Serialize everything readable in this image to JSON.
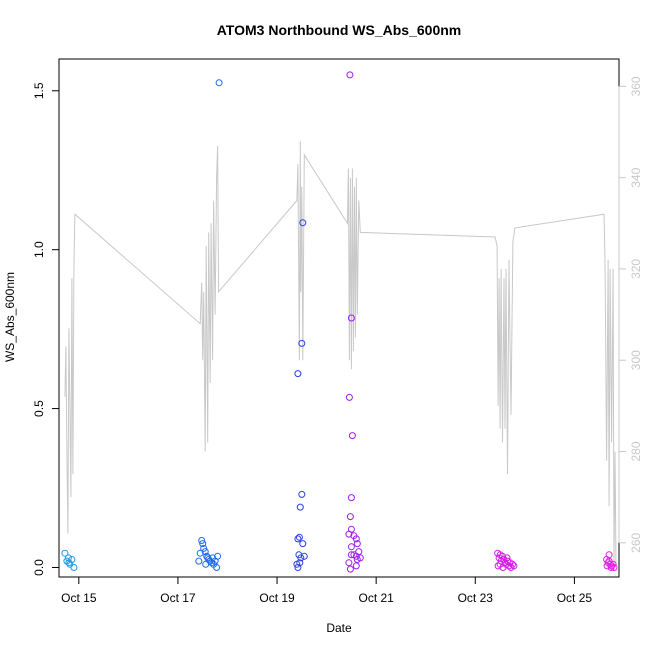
{
  "chart_data": {
    "type": "scatter",
    "title": "ATOM3 Northbound WS_Abs_600nm",
    "xlabel": "Date",
    "ylabel": "WS_Abs_600nm",
    "x_ticks": [
      "Oct 15",
      "Oct 17",
      "Oct 19",
      "Oct 21",
      "Oct 23",
      "Oct 25"
    ],
    "y_ticks": [
      "0.0",
      "0.5",
      "1.0",
      "1.5"
    ],
    "y_right_ticks": [
      "260",
      "280",
      "300",
      "320",
      "340",
      "360"
    ],
    "xlim": [
      14.6,
      25.9
    ],
    "ylim": [
      -0.03,
      1.6
    ],
    "y_right_lim": [
      252.5,
      366
    ],
    "grid": false,
    "colors": {
      "line": "#c8c8c8",
      "right_axis": "#c8c8c8",
      "axis": "#000000",
      "points_early": "#1e9be6",
      "points_mid": "#2457e8",
      "points_late": "#a31bf0",
      "points_end": "#e21de6"
    },
    "series": [
      {
        "kind": "scatter",
        "axis": "left",
        "points": [
          {
            "x": 14.72,
            "y": 0.045,
            "color": "#1e9be6"
          },
          {
            "x": 14.76,
            "y": 0.02,
            "color": "#1e9be6"
          },
          {
            "x": 14.79,
            "y": 0.03,
            "color": "#1e9be6"
          },
          {
            "x": 14.82,
            "y": 0.01,
            "color": "#1e9be6"
          },
          {
            "x": 14.86,
            "y": 0.025,
            "color": "#1e9be6"
          },
          {
            "x": 14.9,
            "y": 0.0,
            "color": "#1e9be6"
          },
          {
            "x": 14.8,
            "y": 0.015,
            "color": "#1e9be6"
          },
          {
            "x": 17.48,
            "y": 0.085,
            "color": "#1e6be6"
          },
          {
            "x": 17.5,
            "y": 0.075,
            "color": "#1e6be6"
          },
          {
            "x": 17.52,
            "y": 0.06,
            "color": "#1e6be6"
          },
          {
            "x": 17.45,
            "y": 0.045,
            "color": "#1e6be6"
          },
          {
            "x": 17.55,
            "y": 0.05,
            "color": "#1e6be6"
          },
          {
            "x": 17.58,
            "y": 0.035,
            "color": "#1e6be6"
          },
          {
            "x": 17.6,
            "y": 0.03,
            "color": "#1e6be6"
          },
          {
            "x": 17.62,
            "y": 0.025,
            "color": "#1e6be6"
          },
          {
            "x": 17.65,
            "y": 0.02,
            "color": "#1e6be6"
          },
          {
            "x": 17.68,
            "y": 0.015,
            "color": "#1e6be6"
          },
          {
            "x": 17.7,
            "y": 0.03,
            "color": "#1e6be6"
          },
          {
            "x": 17.72,
            "y": 0.01,
            "color": "#1e6be6"
          },
          {
            "x": 17.75,
            "y": 0.02,
            "color": "#1e6be6"
          },
          {
            "x": 17.78,
            "y": 0.0,
            "color": "#1e6be6"
          },
          {
            "x": 17.8,
            "y": 0.035,
            "color": "#1e6be6"
          },
          {
            "x": 17.42,
            "y": 0.02,
            "color": "#1e6be6"
          },
          {
            "x": 17.56,
            "y": 0.01,
            "color": "#1e6be6"
          },
          {
            "x": 17.83,
            "y": 1.525,
            "color": "#1e6be6"
          },
          {
            "x": 19.42,
            "y": 0.61,
            "color": "#2a3ee8"
          },
          {
            "x": 19.5,
            "y": 0.705,
            "color": "#2a3ee8"
          },
          {
            "x": 19.52,
            "y": 1.085,
            "color": "#2a3ee8"
          },
          {
            "x": 19.5,
            "y": 0.23,
            "color": "#2a3ee8"
          },
          {
            "x": 19.47,
            "y": 0.19,
            "color": "#2a3ee8"
          },
          {
            "x": 19.45,
            "y": 0.095,
            "color": "#2a3ee8"
          },
          {
            "x": 19.42,
            "y": 0.09,
            "color": "#2a3ee8"
          },
          {
            "x": 19.52,
            "y": 0.075,
            "color": "#2a3ee8"
          },
          {
            "x": 19.44,
            "y": 0.04,
            "color": "#2a3ee8"
          },
          {
            "x": 19.48,
            "y": 0.03,
            "color": "#2a3ee8"
          },
          {
            "x": 19.55,
            "y": 0.035,
            "color": "#2a3ee8"
          },
          {
            "x": 19.46,
            "y": 0.015,
            "color": "#2a3ee8"
          },
          {
            "x": 19.42,
            "y": 0.0,
            "color": "#2a3ee8"
          },
          {
            "x": 19.4,
            "y": 0.01,
            "color": "#2a3ee8"
          },
          {
            "x": 20.47,
            "y": 1.55,
            "color": "#a31bf0"
          },
          {
            "x": 20.5,
            "y": 0.785,
            "color": "#a31bf0"
          },
          {
            "x": 20.46,
            "y": 0.535,
            "color": "#a31bf0"
          },
          {
            "x": 20.52,
            "y": 0.415,
            "color": "#a31bf0"
          },
          {
            "x": 20.5,
            "y": 0.22,
            "color": "#a31bf0"
          },
          {
            "x": 20.48,
            "y": 0.16,
            "color": "#a31bf0"
          },
          {
            "x": 20.5,
            "y": 0.12,
            "color": "#a31bf0"
          },
          {
            "x": 20.45,
            "y": 0.105,
            "color": "#a31bf0"
          },
          {
            "x": 20.55,
            "y": 0.1,
            "color": "#a31bf0"
          },
          {
            "x": 20.6,
            "y": 0.09,
            "color": "#a31bf0"
          },
          {
            "x": 20.62,
            "y": 0.075,
            "color": "#a31bf0"
          },
          {
            "x": 20.5,
            "y": 0.065,
            "color": "#a31bf0"
          },
          {
            "x": 20.55,
            "y": 0.04,
            "color": "#a31bf0"
          },
          {
            "x": 20.6,
            "y": 0.035,
            "color": "#a31bf0"
          },
          {
            "x": 20.65,
            "y": 0.05,
            "color": "#a31bf0"
          },
          {
            "x": 20.68,
            "y": 0.03,
            "color": "#a31bf0"
          },
          {
            "x": 20.62,
            "y": 0.025,
            "color": "#a31bf0"
          },
          {
            "x": 20.5,
            "y": 0.04,
            "color": "#a31bf0"
          },
          {
            "x": 20.45,
            "y": 0.015,
            "color": "#a31bf0"
          },
          {
            "x": 20.48,
            "y": -0.005,
            "color": "#a31bf0"
          },
          {
            "x": 20.6,
            "y": 0.005,
            "color": "#a31bf0"
          },
          {
            "x": 23.45,
            "y": 0.045,
            "color": "#d21de6"
          },
          {
            "x": 23.5,
            "y": 0.04,
            "color": "#d21de6"
          },
          {
            "x": 23.48,
            "y": 0.03,
            "color": "#d21de6"
          },
          {
            "x": 23.52,
            "y": 0.02,
            "color": "#d21de6"
          },
          {
            "x": 23.55,
            "y": 0.035,
            "color": "#d21de6"
          },
          {
            "x": 23.58,
            "y": 0.025,
            "color": "#d21de6"
          },
          {
            "x": 23.6,
            "y": 0.015,
            "color": "#d21de6"
          },
          {
            "x": 23.62,
            "y": 0.01,
            "color": "#d21de6"
          },
          {
            "x": 23.65,
            "y": 0.02,
            "color": "#d21de6"
          },
          {
            "x": 23.68,
            "y": 0.005,
            "color": "#d21de6"
          },
          {
            "x": 23.7,
            "y": 0.015,
            "color": "#d21de6"
          },
          {
            "x": 23.72,
            "y": 0.0,
            "color": "#d21de6"
          },
          {
            "x": 23.75,
            "y": 0.01,
            "color": "#d21de6"
          },
          {
            "x": 23.78,
            "y": 0.005,
            "color": "#d21de6"
          },
          {
            "x": 23.5,
            "y": 0.01,
            "color": "#d21de6"
          },
          {
            "x": 23.56,
            "y": 0.0,
            "color": "#d21de6"
          },
          {
            "x": 23.46,
            "y": 0.005,
            "color": "#d21de6"
          },
          {
            "x": 23.64,
            "y": 0.03,
            "color": "#d21de6"
          },
          {
            "x": 25.65,
            "y": 0.025,
            "color": "#e21de6"
          },
          {
            "x": 25.7,
            "y": 0.04,
            "color": "#e21de6"
          },
          {
            "x": 25.68,
            "y": 0.015,
            "color": "#e21de6"
          },
          {
            "x": 25.72,
            "y": 0.01,
            "color": "#e21de6"
          },
          {
            "x": 25.75,
            "y": 0.005,
            "color": "#e21de6"
          },
          {
            "x": 25.78,
            "y": 0.01,
            "color": "#e21de6"
          },
          {
            "x": 25.8,
            "y": 0.0,
            "color": "#e21de6"
          },
          {
            "x": 25.66,
            "y": 0.005,
            "color": "#e21de6"
          },
          {
            "x": 25.74,
            "y": 0.0,
            "color": "#e21de6"
          },
          {
            "x": 25.7,
            "y": 0.02,
            "color": "#e21de6"
          }
        ]
      },
      {
        "kind": "line",
        "axis": "right",
        "color": "#c8c8c8",
        "points": [
          [
            14.72,
            292
          ],
          [
            14.74,
            303
          ],
          [
            14.76,
            280
          ],
          [
            14.78,
            262
          ],
          [
            14.8,
            307
          ],
          [
            14.82,
            290
          ],
          [
            14.84,
            270
          ],
          [
            14.86,
            318
          ],
          [
            14.88,
            275
          ],
          [
            14.9,
            320
          ],
          [
            14.92,
            332
          ],
          [
            17.45,
            308
          ],
          [
            17.48,
            317
          ],
          [
            17.5,
            300
          ],
          [
            17.52,
            315
          ],
          [
            17.55,
            280
          ],
          [
            17.57,
            325
          ],
          [
            17.6,
            282
          ],
          [
            17.62,
            328
          ],
          [
            17.65,
            295
          ],
          [
            17.67,
            330
          ],
          [
            17.7,
            300
          ],
          [
            17.72,
            335
          ],
          [
            17.75,
            310
          ],
          [
            17.78,
            340
          ],
          [
            17.8,
            347
          ],
          [
            17.82,
            315
          ],
          [
            19.4,
            335
          ],
          [
            19.42,
            343
          ],
          [
            19.45,
            300
          ],
          [
            19.47,
            348
          ],
          [
            19.48,
            315
          ],
          [
            19.5,
            338
          ],
          [
            19.52,
            300
          ],
          [
            19.55,
            345
          ],
          [
            20.42,
            330
          ],
          [
            20.44,
            342
          ],
          [
            20.46,
            300
          ],
          [
            20.48,
            340
          ],
          [
            20.5,
            298
          ],
          [
            20.52,
            342
          ],
          [
            20.54,
            302
          ],
          [
            20.56,
            338
          ],
          [
            20.58,
            305
          ],
          [
            20.6,
            340
          ],
          [
            20.62,
            310
          ],
          [
            20.65,
            335
          ],
          [
            20.68,
            328
          ],
          [
            23.4,
            327
          ],
          [
            23.44,
            325
          ],
          [
            23.46,
            290
          ],
          [
            23.48,
            318
          ],
          [
            23.5,
            285
          ],
          [
            23.52,
            320
          ],
          [
            23.55,
            282
          ],
          [
            23.58,
            318
          ],
          [
            23.6,
            285
          ],
          [
            23.62,
            320
          ],
          [
            23.65,
            275
          ],
          [
            23.68,
            322
          ],
          [
            23.72,
            288
          ],
          [
            23.76,
            326
          ],
          [
            23.8,
            329
          ],
          [
            25.6,
            332
          ],
          [
            25.62,
            320
          ],
          [
            25.65,
            278
          ],
          [
            25.68,
            322
          ],
          [
            25.7,
            268
          ],
          [
            25.72,
            320
          ],
          [
            25.75,
            282
          ],
          [
            25.78,
            320
          ],
          [
            25.8,
            255
          ],
          [
            25.82,
            280
          ],
          [
            25.84,
            255
          ]
        ]
      }
    ]
  }
}
